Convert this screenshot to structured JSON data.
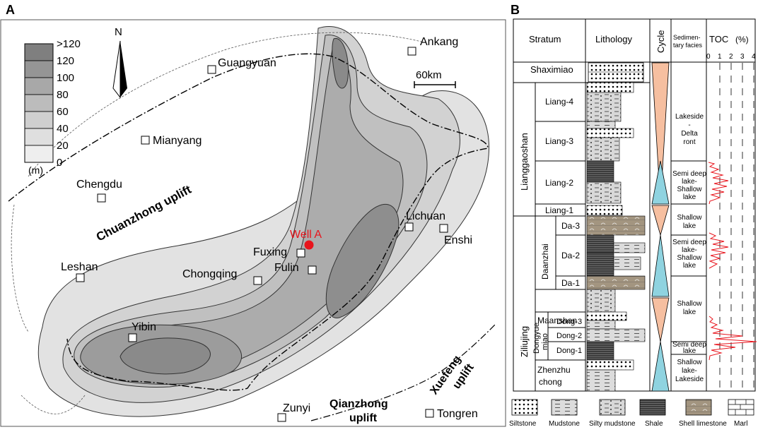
{
  "panel_a": {
    "label": "A",
    "north": "N",
    "scale": "60km",
    "legend": {
      "unit": "(m)",
      "classes": [
        ">120",
        "120",
        "100",
        "80",
        "60",
        "40",
        "20",
        "0"
      ],
      "colors": [
        "#7f7f7f",
        "#959595",
        "#a8a8a8",
        "#bcbcbc",
        "#cfcfcf",
        "#dfdfdf",
        "#eeeeee",
        "#ffffff"
      ]
    },
    "cities": [
      {
        "name": "Ankang"
      },
      {
        "name": "Guangyuan"
      },
      {
        "name": "Mianyang"
      },
      {
        "name": "Chengdu"
      },
      {
        "name": "Leshan"
      },
      {
        "name": "Chongqing"
      },
      {
        "name": "Fuxing"
      },
      {
        "name": "Fulin"
      },
      {
        "name": "Lichuan"
      },
      {
        "name": "Enshi"
      },
      {
        "name": "Yibin"
      },
      {
        "name": "Zunyi"
      },
      {
        "name": "Tongren"
      }
    ],
    "well": "Well A",
    "uplifts": {
      "chuanzhong": "Chuanzhong uplift",
      "qianzhong_1": "Qianzhong",
      "qianzhong_2": "uplift",
      "xuefeng_1": "Xuefeng",
      "xuefeng_2": "uplift"
    }
  },
  "panel_b": {
    "label": "B",
    "headers": {
      "stratum": "Stratum",
      "lithology": "Lithology",
      "cycle": "Cycle",
      "facies_1": "Sedimen-",
      "facies_2": "tary facies",
      "toc": "TOC",
      "toc_unit": "(%)"
    },
    "toc_ticks": [
      "0",
      "1",
      "2",
      "3",
      "4"
    ],
    "formations": {
      "shaximiao": "Shaximiao",
      "lianggaoshan": "Lianggaoshan",
      "ziliujing": "Ziliujing",
      "daanzhai": "Daanzhai",
      "maanshan": "Maanshan",
      "dongyuemiao_1": "Dongyue",
      "dongyuemiao_2": "miao",
      "zhenzhuchong_1": "Zhenzhu",
      "zhenzhuchong_2": "chong"
    },
    "members": [
      "Liang-4",
      "Liang-3",
      "Liang-2",
      "Liang-1",
      "Da-3",
      "Da-2",
      "Da-1",
      "Dong-3",
      "Dong-2",
      "Dong-1"
    ],
    "facies": {
      "lakeside_delta": [
        "Lakeside",
        "-",
        "Delta",
        "ront"
      ],
      "semi_deep_1": [
        "Semi deep",
        "lake-",
        "Shallow",
        "lake"
      ],
      "shallow_1": [
        "Shallow",
        "lake"
      ],
      "semi_deep_2": [
        "Semi deep",
        "lake-",
        "Shallow",
        "lake"
      ],
      "shallow_2": [
        "Shallow",
        "lake"
      ],
      "semi_deep_3": [
        "Semi deep",
        "lake"
      ],
      "shallow_lakeside": [
        "Shallow",
        "lake-",
        "Lakeside"
      ]
    },
    "rock_legend": [
      "Siltstone",
      "Mudstone",
      "Silty mudstone",
      "Shale",
      "Shell limestone",
      "Marl"
    ],
    "colors": {
      "toc_curve": "#e8141c",
      "cycle_up": "#f6bfa0",
      "cycle_down": "#8fd3e0",
      "shell_limestone": "#a39580",
      "shale": "#3c3c3c"
    }
  }
}
